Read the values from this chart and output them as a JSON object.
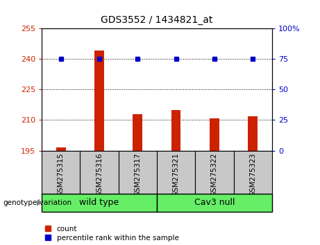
{
  "title": "GDS3552 / 1434821_at",
  "categories": [
    "GSM275315",
    "GSM275316",
    "GSM275317",
    "GSM275321",
    "GSM275322",
    "GSM275323"
  ],
  "bar_values": [
    196.5,
    244.0,
    213.0,
    215.0,
    211.0,
    212.0
  ],
  "percentile_values": [
    75,
    75,
    75,
    75,
    75,
    75
  ],
  "ylim_left": [
    195,
    255
  ],
  "ylim_right": [
    0,
    100
  ],
  "yticks_left": [
    195,
    210,
    225,
    240,
    255
  ],
  "yticks_right": [
    0,
    25,
    50,
    75,
    100
  ],
  "bar_color": "#cc2200",
  "marker_color": "#0000cc",
  "background_plot": "#ffffff",
  "background_label": "#c8c8c8",
  "groups": [
    {
      "label": "wild type",
      "indices": [
        0,
        1,
        2
      ],
      "color": "#66ee66"
    },
    {
      "label": "Cav3 null",
      "indices": [
        3,
        4,
        5
      ],
      "color": "#66ee66"
    }
  ],
  "genotype_label": "genotype/variation",
  "legend_items": [
    {
      "label": "count",
      "color": "#cc2200"
    },
    {
      "label": "percentile rank within the sample",
      "color": "#0000cc"
    }
  ]
}
